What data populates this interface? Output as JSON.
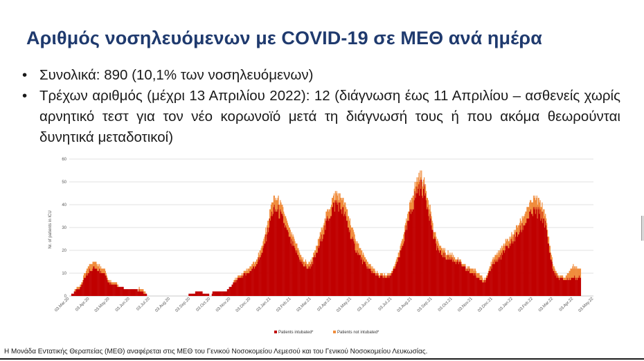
{
  "slide": {
    "title": "Αριθμός νοσηλευόμενων με COVID-19 σε ΜΕΘ ανά ημέρα",
    "bullets": [
      {
        "marker": "•",
        "text": "Συνολικά: 890 (10,1% των νοσηλευόμενων)"
      },
      {
        "marker": "•",
        "text": "Τρέχων αριθμός (μέχρι 13 Απριλίου 2022): 12 (διάγνωση έως 11 Απριλίου – ασθενείς χωρίς αρνητικό τεστ για τον νέο κορωνοϊό μετά τη διάγνωσή τους ή που ακόμα θεωρούνται δυνητικά μεταδοτικοί)"
      }
    ],
    "footer": "Η Μονάδα Εντατικής Θεραπείας (ΜΕΘ) αναφέρεται στις ΜΕΘ του Γενικού Νοσοκομείου Λεμεσού και του Γενικού Νοσοκομείου Λευκωσίας."
  },
  "chart_data": {
    "type": "bar",
    "stacked": true,
    "ylabel": "Nr. of patients in ICU",
    "ylim": [
      0,
      60
    ],
    "yticks": [
      0,
      10,
      20,
      30,
      40,
      50,
      60
    ],
    "grid": true,
    "legend_position": "bottom",
    "x_start": "2020-03-03",
    "x_end": "2022-05-03",
    "xtick_labels": [
      "03.Mar.20",
      "03.Apr.20",
      "03.May.20",
      "03.Jun.20",
      "03.Jul.20",
      "03.Aug.20",
      "03.Sep.20",
      "03.Oct.20",
      "03.Nov.20",
      "03.Dec.20",
      "03.Jan.21",
      "03.Feb.21",
      "03.Mar.21",
      "03.Apr.21",
      "03.May.21",
      "03.Jun.21",
      "03.Jul.21",
      "03.Aug.21",
      "03.Sep.21",
      "03.Oct.21",
      "03.Nov.21",
      "03.Dec.21",
      "03.Jan.22",
      "03.Feb.22",
      "03.Mar.22",
      "03.Apr.22",
      "03.May.22"
    ],
    "series": [
      {
        "name": "Patients intubated*",
        "color": "#c00000",
        "points": [
          [
            "2020-03-03",
            0
          ],
          [
            "2020-03-20",
            4
          ],
          [
            "2020-03-27",
            9
          ],
          [
            "2020-04-03",
            11
          ],
          [
            "2020-04-10",
            12
          ],
          [
            "2020-04-17",
            11
          ],
          [
            "2020-04-24",
            10
          ],
          [
            "2020-05-01",
            6
          ],
          [
            "2020-05-10",
            5
          ],
          [
            "2020-05-20",
            4
          ],
          [
            "2020-06-01",
            3
          ],
          [
            "2020-06-10",
            3
          ],
          [
            "2020-06-20",
            2
          ],
          [
            "2020-06-30",
            0
          ],
          [
            "2020-08-28",
            0
          ],
          [
            "2020-09-01",
            1
          ],
          [
            "2020-09-15",
            2
          ],
          [
            "2020-09-25",
            1
          ],
          [
            "2020-10-03",
            0
          ],
          [
            "2020-10-05",
            2
          ],
          [
            "2020-10-25",
            2
          ],
          [
            "2020-11-01",
            4
          ],
          [
            "2020-11-10",
            7
          ],
          [
            "2020-11-20",
            9
          ],
          [
            "2020-12-01",
            11
          ],
          [
            "2020-12-10",
            14
          ],
          [
            "2020-12-20",
            20
          ],
          [
            "2020-12-28",
            30
          ],
          [
            "2021-01-03",
            37
          ],
          [
            "2021-01-10",
            38
          ],
          [
            "2021-01-18",
            34
          ],
          [
            "2021-01-25",
            28
          ],
          [
            "2021-02-03",
            22
          ],
          [
            "2021-02-10",
            18
          ],
          [
            "2021-02-18",
            14
          ],
          [
            "2021-02-25",
            12
          ],
          [
            "2021-03-03",
            14
          ],
          [
            "2021-03-10",
            18
          ],
          [
            "2021-03-20",
            27
          ],
          [
            "2021-03-28",
            34
          ],
          [
            "2021-04-03",
            38
          ],
          [
            "2021-04-10",
            41
          ],
          [
            "2021-04-18",
            38
          ],
          [
            "2021-04-25",
            33
          ],
          [
            "2021-05-03",
            25
          ],
          [
            "2021-05-10",
            20
          ],
          [
            "2021-05-20",
            15
          ],
          [
            "2021-06-01",
            11
          ],
          [
            "2021-06-10",
            9
          ],
          [
            "2021-06-20",
            8
          ],
          [
            "2021-07-01",
            9
          ],
          [
            "2021-07-10",
            14
          ],
          [
            "2021-07-18",
            22
          ],
          [
            "2021-07-25",
            30
          ],
          [
            "2021-08-03",
            40
          ],
          [
            "2021-08-10",
            47
          ],
          [
            "2021-08-15",
            48
          ],
          [
            "2021-08-22",
            44
          ],
          [
            "2021-08-29",
            35
          ],
          [
            "2021-09-03",
            26
          ],
          [
            "2021-09-12",
            19
          ],
          [
            "2021-09-22",
            17
          ],
          [
            "2021-10-01",
            16
          ],
          [
            "2021-10-10",
            15
          ],
          [
            "2021-10-20",
            12
          ],
          [
            "2021-11-01",
            10
          ],
          [
            "2021-11-10",
            8
          ],
          [
            "2021-11-20",
            6
          ],
          [
            "2021-12-01",
            14
          ],
          [
            "2021-12-10",
            16
          ],
          [
            "2021-12-20",
            20
          ],
          [
            "2022-01-03",
            25
          ],
          [
            "2022-01-15",
            30
          ],
          [
            "2022-01-25",
            35
          ],
          [
            "2022-02-03",
            37
          ],
          [
            "2022-02-10",
            36
          ],
          [
            "2022-02-18",
            33
          ],
          [
            "2022-02-25",
            20
          ],
          [
            "2022-03-03",
            11
          ],
          [
            "2022-03-10",
            8
          ],
          [
            "2022-03-20",
            7
          ],
          [
            "2022-04-01",
            8
          ],
          [
            "2022-04-13",
            8
          ]
        ]
      },
      {
        "name": "Patients not intubated*",
        "color": "#f08c3c",
        "points": [
          [
            "2020-03-03",
            0
          ],
          [
            "2020-03-20",
            1
          ],
          [
            "2020-03-27",
            2
          ],
          [
            "2020-04-03",
            3
          ],
          [
            "2020-04-10",
            3
          ],
          [
            "2020-04-17",
            2
          ],
          [
            "2020-04-24",
            2
          ],
          [
            "2020-05-01",
            1
          ],
          [
            "2020-05-10",
            1
          ],
          [
            "2020-05-20",
            0
          ],
          [
            "2020-06-01",
            0
          ],
          [
            "2020-06-10",
            0
          ],
          [
            "2020-06-20",
            1
          ],
          [
            "2020-06-30",
            0
          ],
          [
            "2020-08-28",
            0
          ],
          [
            "2020-09-01",
            0
          ],
          [
            "2020-09-15",
            0
          ],
          [
            "2020-09-25",
            0
          ],
          [
            "2020-10-03",
            0
          ],
          [
            "2020-10-05",
            0
          ],
          [
            "2020-10-25",
            0
          ],
          [
            "2020-11-01",
            0
          ],
          [
            "2020-11-10",
            1
          ],
          [
            "2020-11-20",
            1
          ],
          [
            "2020-12-01",
            2
          ],
          [
            "2020-12-10",
            2
          ],
          [
            "2020-12-20",
            3
          ],
          [
            "2020-12-28",
            4
          ],
          [
            "2021-01-03",
            5
          ],
          [
            "2021-01-10",
            5
          ],
          [
            "2021-01-18",
            5
          ],
          [
            "2021-01-25",
            4
          ],
          [
            "2021-02-03",
            4
          ],
          [
            "2021-02-10",
            3
          ],
          [
            "2021-02-18",
            2
          ],
          [
            "2021-02-25",
            2
          ],
          [
            "2021-03-03",
            2
          ],
          [
            "2021-03-10",
            3
          ],
          [
            "2021-03-20",
            4
          ],
          [
            "2021-03-28",
            4
          ],
          [
            "2021-04-03",
            4
          ],
          [
            "2021-04-10",
            4
          ],
          [
            "2021-04-18",
            5
          ],
          [
            "2021-04-25",
            5
          ],
          [
            "2021-05-03",
            5
          ],
          [
            "2021-05-10",
            4
          ],
          [
            "2021-05-20",
            3
          ],
          [
            "2021-06-01",
            2
          ],
          [
            "2021-06-10",
            1
          ],
          [
            "2021-06-20",
            1
          ],
          [
            "2021-07-01",
            1
          ],
          [
            "2021-07-10",
            2
          ],
          [
            "2021-07-18",
            3
          ],
          [
            "2021-07-25",
            4
          ],
          [
            "2021-08-03",
            5
          ],
          [
            "2021-08-10",
            5
          ],
          [
            "2021-08-15",
            5
          ],
          [
            "2021-08-22",
            4
          ],
          [
            "2021-08-29",
            4
          ],
          [
            "2021-09-03",
            3
          ],
          [
            "2021-09-12",
            3
          ],
          [
            "2021-09-22",
            2
          ],
          [
            "2021-10-01",
            2
          ],
          [
            "2021-10-10",
            1
          ],
          [
            "2021-10-20",
            1
          ],
          [
            "2021-11-01",
            2
          ],
          [
            "2021-11-10",
            2
          ],
          [
            "2021-11-20",
            1
          ],
          [
            "2021-12-01",
            2
          ],
          [
            "2021-12-10",
            3
          ],
          [
            "2021-12-20",
            3
          ],
          [
            "2022-01-03",
            3
          ],
          [
            "2022-01-15",
            4
          ],
          [
            "2022-01-25",
            5
          ],
          [
            "2022-02-03",
            6
          ],
          [
            "2022-02-10",
            5
          ],
          [
            "2022-02-18",
            4
          ],
          [
            "2022-02-25",
            3
          ],
          [
            "2022-03-03",
            2
          ],
          [
            "2022-03-10",
            1
          ],
          [
            "2022-03-20",
            1
          ],
          [
            "2022-04-01",
            5
          ],
          [
            "2022-04-13",
            4
          ]
        ]
      }
    ]
  }
}
